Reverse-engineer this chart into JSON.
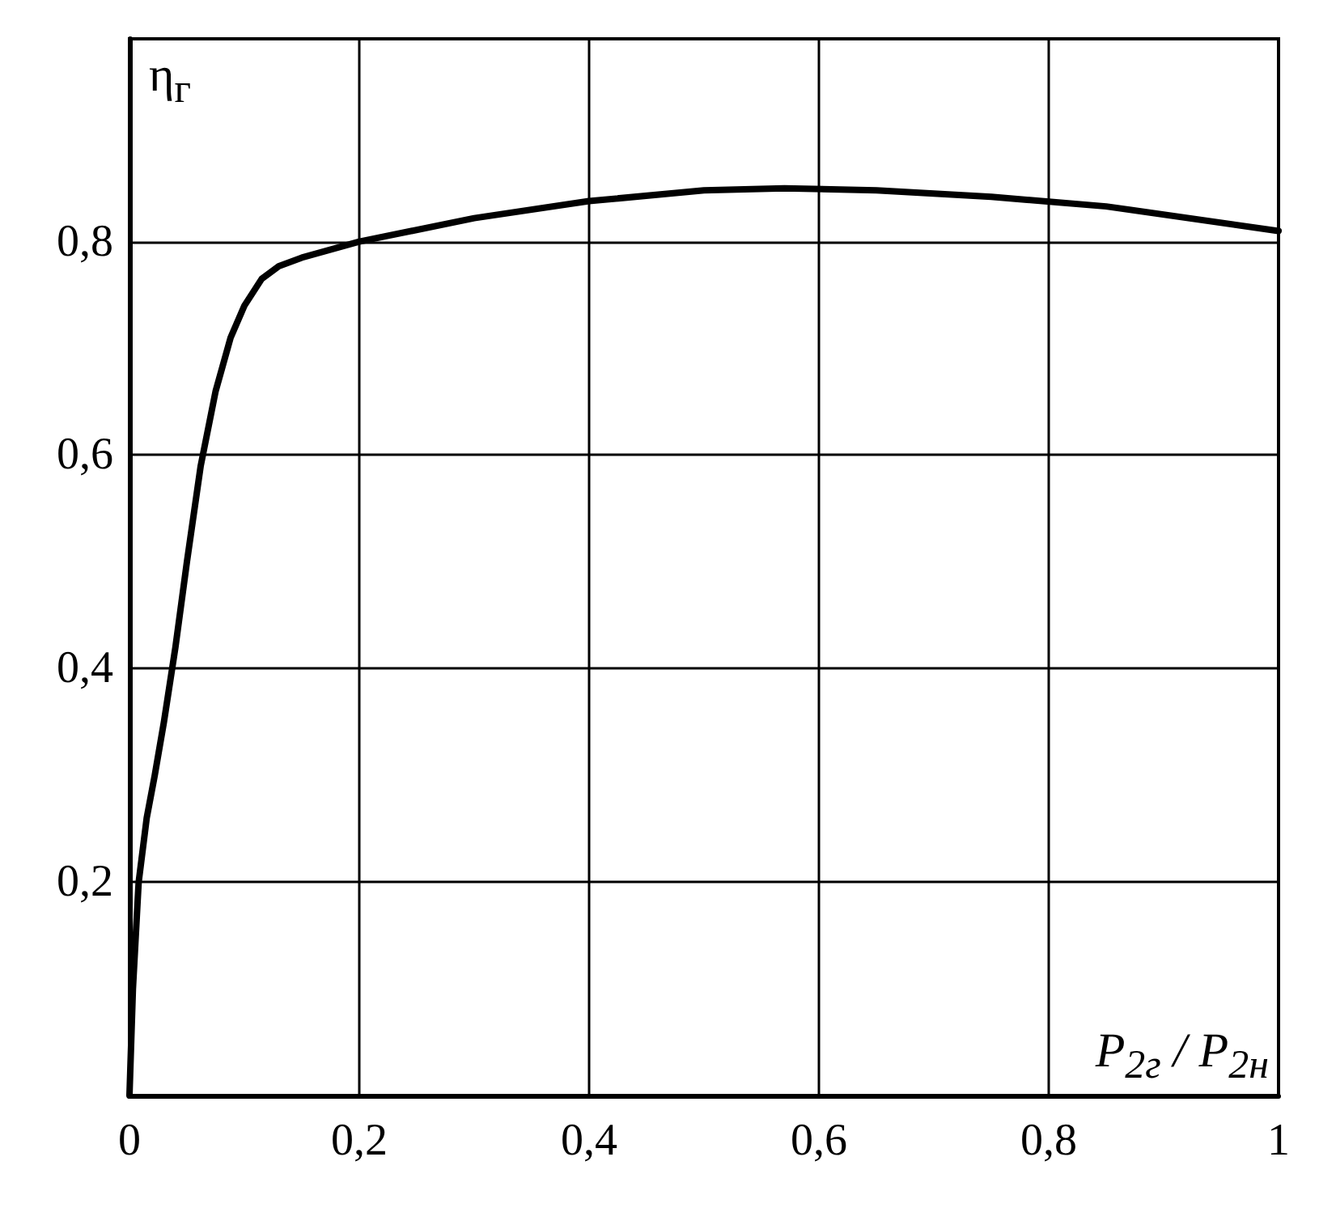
{
  "chart_data": {
    "type": "line",
    "xlabel": "P$_{2г}$ / P$_{2н}$",
    "ylabel": "η$_{г}$",
    "xlim": [
      0,
      1
    ],
    "ylim": [
      0,
      0.99
    ],
    "xticks": [
      {
        "value": 0,
        "label": "0"
      },
      {
        "value": 0.2,
        "label": "0,2"
      },
      {
        "value": 0.4,
        "label": "0,4"
      },
      {
        "value": 0.6,
        "label": "0,6"
      },
      {
        "value": 0.8,
        "label": "0,8"
      },
      {
        "value": 1,
        "label": "1"
      }
    ],
    "yticks": [
      {
        "value": 0.2,
        "label": "0,2"
      },
      {
        "value": 0.4,
        "label": "0,4"
      },
      {
        "value": 0.6,
        "label": "0,6"
      },
      {
        "value": 0.8,
        "label": "0,8"
      }
    ],
    "grid": true,
    "marker": "none",
    "line_style": "solid",
    "series": [
      {
        "color": "#000000",
        "x": [
          0,
          0.003,
          0.008,
          0.015,
          0.022,
          0.03,
          0.04,
          0.05,
          0.062,
          0.075,
          0.088,
          0.1,
          0.115,
          0.13,
          0.15,
          0.2,
          0.3,
          0.4,
          0.5,
          0.57,
          0.65,
          0.75,
          0.85,
          1
        ],
        "values": [
          0,
          0.1,
          0.2,
          0.26,
          0.3,
          0.35,
          0.42,
          0.5,
          0.59,
          0.66,
          0.71,
          0.74,
          0.765,
          0.777,
          0.785,
          0.8,
          0.822,
          0.838,
          0.848,
          0.85,
          0.848,
          0.842,
          0.833,
          0.81
        ]
      }
    ]
  }
}
